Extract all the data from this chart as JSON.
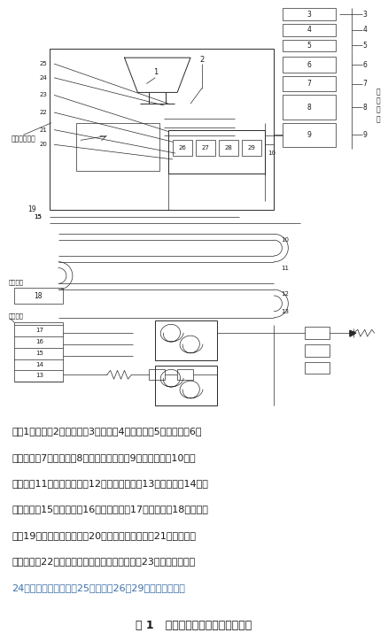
{
  "title": "图 1   脉冲振动螺旋搅拌机结构示意",
  "note_line1": "注：1．料斗；2．振动筛；3．电机；4．分动箱；5．变速箱；6．",
  "note_line2": "液压马达；7．液压泵；8．水泥供应系统；9．供水系统；10．搅",
  "note_line3": "拌叶片；11．螺旋搅拌轴；12．螺旋搅拌仓；13．交流电；14．脉",
  "note_line4": "冲整流器；15．变阻器；16．脉冲线圈；17．电磁铁；18．联接装",
  "note_line5": "置；19．光电计量配比仪；20．单档石料储存仓；21．合格料储",
  "note_line6": "料仓阀门；22．合格料储料仓（筛分仓阀门）；23．筛分仓阀门；",
  "note_line7": "24．激光级配检测仪；25．料门；26～29．石料储存仓。",
  "black": "#1a1a1a",
  "blue": "#3a6fa8",
  "bg": "#ffffff",
  "lc": "#2a2a2a"
}
